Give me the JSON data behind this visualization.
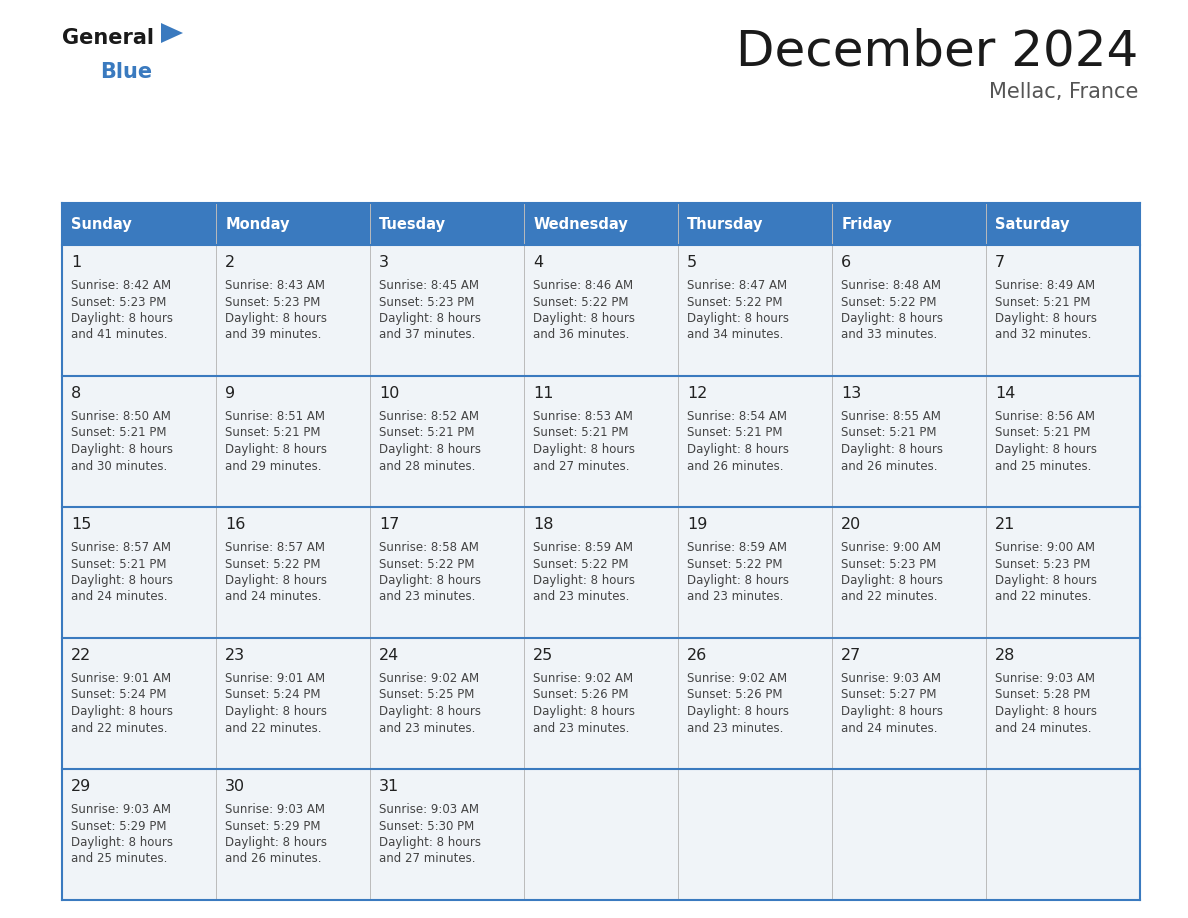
{
  "title": "December 2024",
  "subtitle": "Mellac, France",
  "header_color": "#3a7abf",
  "header_text_color": "#ffffff",
  "border_color": "#3a7abf",
  "divider_color": "#3a7abf",
  "cell_bg_even": "#f0f4f8",
  "cell_bg_odd": "#ffffff",
  "text_day_color": "#222222",
  "text_info_color": "#444444",
  "days_of_week": [
    "Sunday",
    "Monday",
    "Tuesday",
    "Wednesday",
    "Thursday",
    "Friday",
    "Saturday"
  ],
  "weeks": [
    [
      {
        "day": 1,
        "sunrise": "8:42 AM",
        "sunset": "5:23 PM",
        "daylight": "8 hours",
        "daylight2": "and 41 minutes."
      },
      {
        "day": 2,
        "sunrise": "8:43 AM",
        "sunset": "5:23 PM",
        "daylight": "8 hours",
        "daylight2": "and 39 minutes."
      },
      {
        "day": 3,
        "sunrise": "8:45 AM",
        "sunset": "5:23 PM",
        "daylight": "8 hours",
        "daylight2": "and 37 minutes."
      },
      {
        "day": 4,
        "sunrise": "8:46 AM",
        "sunset": "5:22 PM",
        "daylight": "8 hours",
        "daylight2": "and 36 minutes."
      },
      {
        "day": 5,
        "sunrise": "8:47 AM",
        "sunset": "5:22 PM",
        "daylight": "8 hours",
        "daylight2": "and 34 minutes."
      },
      {
        "day": 6,
        "sunrise": "8:48 AM",
        "sunset": "5:22 PM",
        "daylight": "8 hours",
        "daylight2": "and 33 minutes."
      },
      {
        "day": 7,
        "sunrise": "8:49 AM",
        "sunset": "5:21 PM",
        "daylight": "8 hours",
        "daylight2": "and 32 minutes."
      }
    ],
    [
      {
        "day": 8,
        "sunrise": "8:50 AM",
        "sunset": "5:21 PM",
        "daylight": "8 hours",
        "daylight2": "and 30 minutes."
      },
      {
        "day": 9,
        "sunrise": "8:51 AM",
        "sunset": "5:21 PM",
        "daylight": "8 hours",
        "daylight2": "and 29 minutes."
      },
      {
        "day": 10,
        "sunrise": "8:52 AM",
        "sunset": "5:21 PM",
        "daylight": "8 hours",
        "daylight2": "and 28 minutes."
      },
      {
        "day": 11,
        "sunrise": "8:53 AM",
        "sunset": "5:21 PM",
        "daylight": "8 hours",
        "daylight2": "and 27 minutes."
      },
      {
        "day": 12,
        "sunrise": "8:54 AM",
        "sunset": "5:21 PM",
        "daylight": "8 hours",
        "daylight2": "and 26 minutes."
      },
      {
        "day": 13,
        "sunrise": "8:55 AM",
        "sunset": "5:21 PM",
        "daylight": "8 hours",
        "daylight2": "and 26 minutes."
      },
      {
        "day": 14,
        "sunrise": "8:56 AM",
        "sunset": "5:21 PM",
        "daylight": "8 hours",
        "daylight2": "and 25 minutes."
      }
    ],
    [
      {
        "day": 15,
        "sunrise": "8:57 AM",
        "sunset": "5:21 PM",
        "daylight": "8 hours",
        "daylight2": "and 24 minutes."
      },
      {
        "day": 16,
        "sunrise": "8:57 AM",
        "sunset": "5:22 PM",
        "daylight": "8 hours",
        "daylight2": "and 24 minutes."
      },
      {
        "day": 17,
        "sunrise": "8:58 AM",
        "sunset": "5:22 PM",
        "daylight": "8 hours",
        "daylight2": "and 23 minutes."
      },
      {
        "day": 18,
        "sunrise": "8:59 AM",
        "sunset": "5:22 PM",
        "daylight": "8 hours",
        "daylight2": "and 23 minutes."
      },
      {
        "day": 19,
        "sunrise": "8:59 AM",
        "sunset": "5:22 PM",
        "daylight": "8 hours",
        "daylight2": "and 23 minutes."
      },
      {
        "day": 20,
        "sunrise": "9:00 AM",
        "sunset": "5:23 PM",
        "daylight": "8 hours",
        "daylight2": "and 22 minutes."
      },
      {
        "day": 21,
        "sunrise": "9:00 AM",
        "sunset": "5:23 PM",
        "daylight": "8 hours",
        "daylight2": "and 22 minutes."
      }
    ],
    [
      {
        "day": 22,
        "sunrise": "9:01 AM",
        "sunset": "5:24 PM",
        "daylight": "8 hours",
        "daylight2": "and 22 minutes."
      },
      {
        "day": 23,
        "sunrise": "9:01 AM",
        "sunset": "5:24 PM",
        "daylight": "8 hours",
        "daylight2": "and 22 minutes."
      },
      {
        "day": 24,
        "sunrise": "9:02 AM",
        "sunset": "5:25 PM",
        "daylight": "8 hours",
        "daylight2": "and 23 minutes."
      },
      {
        "day": 25,
        "sunrise": "9:02 AM",
        "sunset": "5:26 PM",
        "daylight": "8 hours",
        "daylight2": "and 23 minutes."
      },
      {
        "day": 26,
        "sunrise": "9:02 AM",
        "sunset": "5:26 PM",
        "daylight": "8 hours",
        "daylight2": "and 23 minutes."
      },
      {
        "day": 27,
        "sunrise": "9:03 AM",
        "sunset": "5:27 PM",
        "daylight": "8 hours",
        "daylight2": "and 24 minutes."
      },
      {
        "day": 28,
        "sunrise": "9:03 AM",
        "sunset": "5:28 PM",
        "daylight": "8 hours",
        "daylight2": "and 24 minutes."
      }
    ],
    [
      {
        "day": 29,
        "sunrise": "9:03 AM",
        "sunset": "5:29 PM",
        "daylight": "8 hours",
        "daylight2": "and 25 minutes."
      },
      {
        "day": 30,
        "sunrise": "9:03 AM",
        "sunset": "5:29 PM",
        "daylight": "8 hours",
        "daylight2": "and 26 minutes."
      },
      {
        "day": 31,
        "sunrise": "9:03 AM",
        "sunset": "5:30 PM",
        "daylight": "8 hours",
        "daylight2": "and 27 minutes."
      },
      null,
      null,
      null,
      null
    ]
  ],
  "logo_color_general": "#1a1a1a",
  "logo_color_blue": "#3a7abf",
  "fig_width": 11.88,
  "fig_height": 9.18,
  "dpi": 100
}
